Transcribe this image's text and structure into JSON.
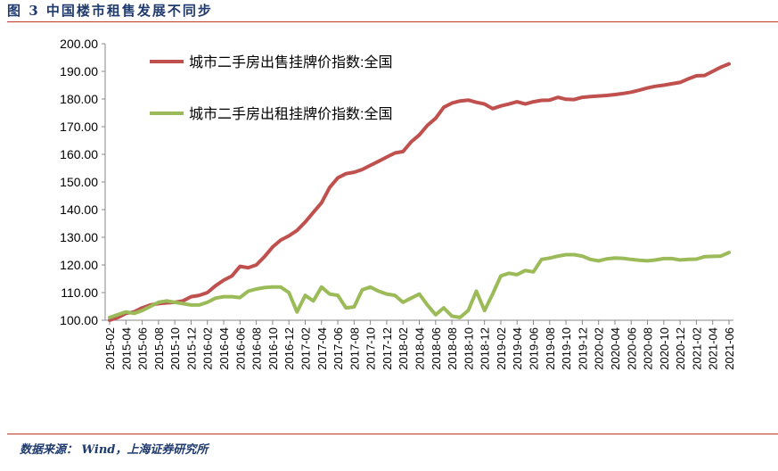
{
  "title": "图 3  中国楼市租售发展不同步",
  "source": "数据来源： Wind，上海证券研究所",
  "chart_data": {
    "type": "line",
    "title": "",
    "xlabel": "",
    "ylabel": "",
    "ylim": [
      100,
      200
    ],
    "yticks": [
      "100.00",
      "110.00",
      "120.00",
      "130.00",
      "140.00",
      "150.00",
      "160.00",
      "170.00",
      "180.00",
      "190.00",
      "200.00"
    ],
    "grid": false,
    "legend": "top-left",
    "x_start": "2015-02",
    "x_end": "2021-06",
    "x_tick_step_months": 2,
    "series": [
      {
        "name": "城市二手房出售挂牌价指数:全国",
        "color": "#C0504D",
        "values": [
          100.0,
          101,
          102.5,
          103,
          104.5,
          105.5,
          106,
          106.3,
          106.5,
          107,
          108.5,
          109,
          110,
          112.5,
          114.5,
          116,
          119.5,
          119,
          120,
          123,
          126.5,
          129,
          130.5,
          132.5,
          135.5,
          139,
          142.5,
          148,
          151.5,
          153,
          153.5,
          154.5,
          156,
          157.5,
          159,
          160.5,
          161,
          164.5,
          167,
          170.5,
          173,
          177,
          178.5,
          179.3,
          179.6,
          178.8,
          178.2,
          176.5,
          177.5,
          178.2,
          179,
          178.2,
          179,
          179.5,
          179.6,
          180.6,
          179.9,
          179.8,
          180.6,
          180.9,
          181.1,
          181.3,
          181.6,
          182,
          182.5,
          183.2,
          184,
          184.6,
          185,
          185.5,
          186,
          187.3,
          188.4,
          188.5,
          190,
          191.5,
          192.7
        ]
      },
      {
        "name": "城市二手房出租挂牌价指数:全国",
        "color": "#9BBB59",
        "values": [
          101,
          102,
          103,
          102.5,
          103.5,
          105,
          106.5,
          107,
          106.5,
          106,
          105.5,
          105.5,
          106.5,
          108,
          108.5,
          108.5,
          108.2,
          110.5,
          111.3,
          111.8,
          112,
          112,
          110,
          103,
          109,
          107,
          112,
          109.5,
          109,
          104.5,
          104.8,
          111,
          112,
          110.5,
          109.5,
          109,
          106.5,
          108,
          109.5,
          105.5,
          102,
          104.5,
          101.5,
          101,
          103.5,
          110.5,
          103.5,
          109.5,
          116,
          117,
          116.5,
          118,
          117.5,
          122,
          122.5,
          123.2,
          123.7,
          123.7,
          123.2,
          122,
          121.5,
          122.2,
          122.5,
          122.4,
          122,
          121.7,
          121.5,
          121.8,
          122.3,
          122.3,
          121.8,
          122,
          122.1,
          123,
          123.1,
          123.2,
          124.5
        ]
      }
    ]
  }
}
